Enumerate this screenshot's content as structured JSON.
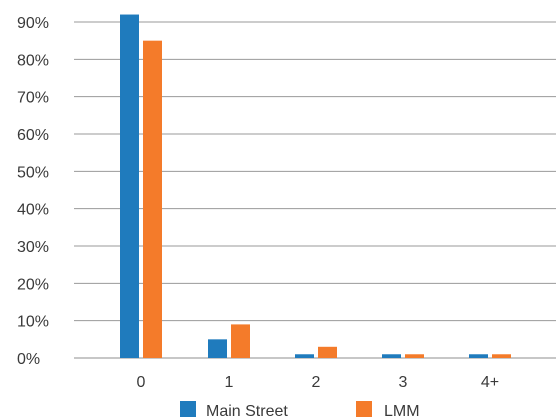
{
  "chart_data": {
    "type": "bar",
    "categories": [
      "0",
      "1",
      "2",
      "3",
      "4+"
    ],
    "series": [
      {
        "name": "Main Street",
        "values": [
          92,
          5,
          1,
          1,
          1
        ],
        "color": "#1f7bbd"
      },
      {
        "name": "LMM",
        "values": [
          85,
          9,
          3,
          1,
          1
        ],
        "color": "#f47b2a"
      }
    ],
    "ylim": [
      0,
      90
    ],
    "y_ticks": [
      "0%",
      "10%",
      "20%",
      "30%",
      "40%",
      "50%",
      "60%",
      "70%",
      "80%",
      "90%"
    ],
    "y_tick_values": [
      0,
      10,
      20,
      30,
      40,
      50,
      60,
      70,
      80,
      90
    ],
    "grid": true,
    "legend_position": "bottom",
    "title": "",
    "xlabel": "",
    "ylabel": ""
  }
}
